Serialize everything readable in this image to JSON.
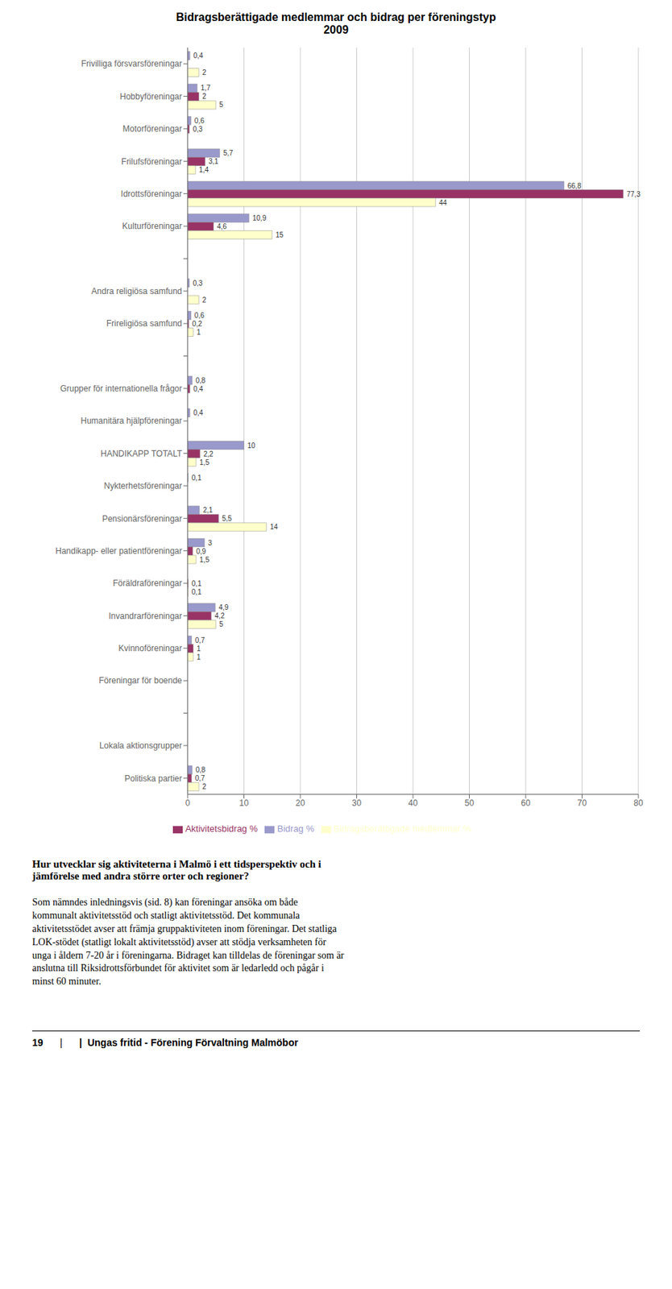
{
  "chart_data": {
    "type": "bar",
    "orientation": "horizontal",
    "title": "Bidragsberättigade medlemmar och bidrag per föreningstyp",
    "subtitle": "2009",
    "categories": [
      "Frivilliga försvarsföreningar",
      "Hobbyföreningar",
      "Motorföreningar",
      "Frilufsföreningar",
      "Idrottsföreningar",
      "Kulturföreningar",
      null,
      "Andra religiösa samfund",
      "Frireligiösa samfund",
      null,
      "Grupper för internationella frågor",
      "Humanitära hjälpföreningar",
      "HANDIKAPP TOTALT",
      "Nykterhetsföreningar",
      "Pensionärsföreningar",
      "Handikapp- eller patientföreningar",
      "Föräldraföreningar",
      "Invandrarföreningar",
      "Kvinnoföreningar",
      "Föreningar för boende",
      null,
      "Lokala aktionsgrupper",
      "Politiska partier"
    ],
    "series": [
      {
        "name": "Bidrag %",
        "color": "#9999cc",
        "values": [
          0.4,
          1.7,
          0.6,
          5.7,
          66.8,
          10.9,
          0,
          0.3,
          0.6,
          0,
          0.8,
          0.4,
          10,
          0.1,
          2.1,
          3,
          0,
          4.9,
          0.7,
          0,
          0,
          0,
          0.8
        ],
        "value_labels": [
          "0,4",
          "1,7",
          "0,6",
          "5,7",
          "66,8",
          "10,9",
          null,
          "0,3",
          "0,6",
          null,
          "0,8",
          "0,4",
          "10",
          "0,1",
          "2,1",
          "3",
          null,
          "4,9",
          "0,7",
          null,
          null,
          null,
          "0,8"
        ]
      },
      {
        "name": "Aktivitetsbidrag %",
        "color": "#993366",
        "values": [
          0,
          2,
          0.3,
          3.1,
          77.3,
          4.6,
          0,
          0,
          0.2,
          0,
          0.4,
          0,
          2.2,
          0,
          5.5,
          0.9,
          0.1,
          4.2,
          1,
          0,
          0,
          0,
          0.7
        ],
        "value_labels": [
          null,
          "2",
          "0,3",
          "3,1",
          "77,3",
          "4,6",
          null,
          null,
          "0,2",
          null,
          "0,4",
          null,
          "2,2",
          null,
          "5,5",
          "0,9",
          "0,1",
          "4,2",
          "1",
          null,
          null,
          null,
          "0,7"
        ]
      },
      {
        "name": "Bidragsberättigade medlemmar %",
        "color": "#ffffcc",
        "values": [
          2,
          5,
          0,
          1.4,
          44,
          15,
          0,
          2,
          1,
          0,
          0,
          0,
          1.5,
          0,
          14,
          1.5,
          0.1,
          5,
          1,
          0,
          0,
          0,
          2
        ],
        "value_labels": [
          "2",
          "5",
          null,
          "1,4",
          "44",
          "15",
          null,
          "2",
          "1",
          null,
          null,
          null,
          "1,5",
          null,
          "14",
          "1,5",
          "0,1",
          "5",
          "1",
          null,
          null,
          null,
          "2"
        ]
      }
    ],
    "xlim": [
      0,
      80
    ],
    "xticks": [
      0,
      10,
      20,
      30,
      40,
      50,
      60,
      70,
      80
    ],
    "grid": true,
    "legend": "bottom",
    "data_labels": true,
    "annotations": [
      "Hur utvecklar sig aktiviteterna i Malmö i ett tidsperspektiv och i\njämförelse med andra större orter och regioner?",
      "Som nämndes inledningsvis (sid. 8) kan föreningar ansöka om både\nkommunalt aktivitetsstöd och statligt aktivitetsstöd. Det kommunala\naktivitetsstödet avser att främja gruppaktiviteten inom föreningar. Det statliga\nLOK-stödet (statligt lokalt aktivitetsstöd) avser att stödja verksamheten för\nunga i åldern 7-20 år i föreningarna. Bidraget kan tilldelas de föreningar som är\nanslutna till Riksidrottsförbundet för aktivitet som är ledarledd och pågår i\nminst 60 minuter.",
      "19",
      "|",
      "|  Ungas fritid - Förening Förvaltning Malmöbor"
    ]
  }
}
